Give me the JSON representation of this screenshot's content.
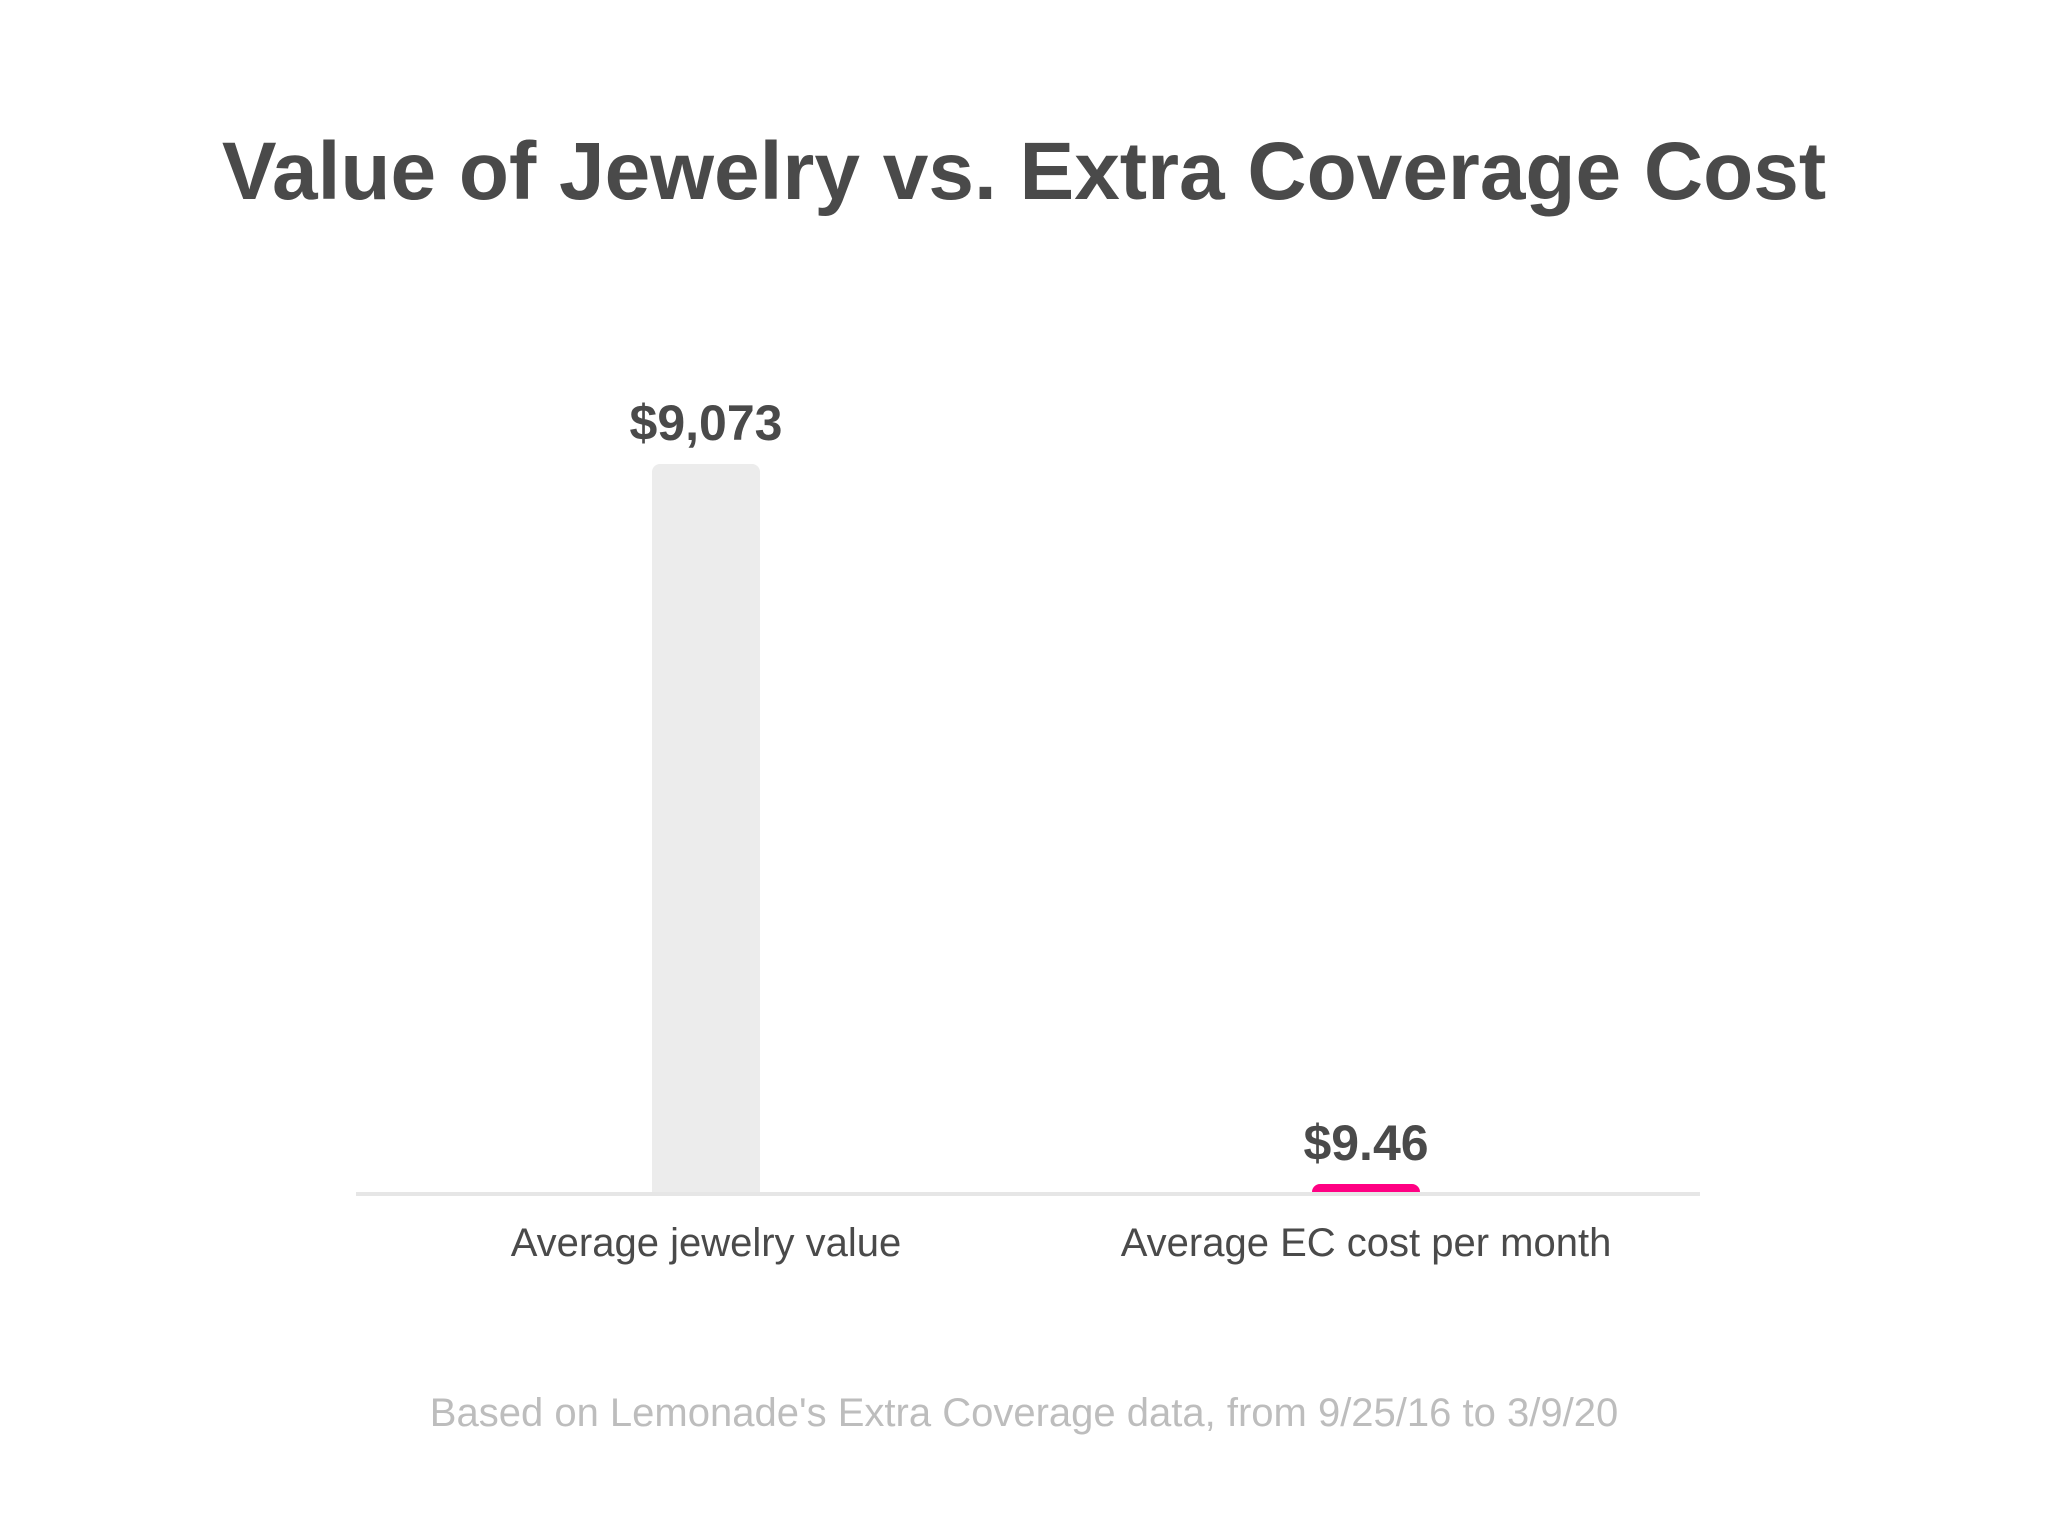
{
  "chart_data": {
    "type": "bar",
    "title": "Value of Jewelry vs. Extra Coverage Cost",
    "categories": [
      "Average jewelry value",
      "Average EC cost per month"
    ],
    "values": [
      9073,
      9.46
    ],
    "value_labels": [
      "$9,073",
      "$9.46"
    ],
    "bar_colors": [
      "#ececec",
      "#ff0083"
    ],
    "ylim": [
      0,
      9073
    ],
    "grid": false,
    "xlabel": "",
    "ylabel": "",
    "note": "Based on Lemonade's Extra Coverage data, from 9/25/16 to 3/9/20"
  },
  "colors": {
    "text_dark": "#4a4a4a",
    "text_muted": "#bdbdbd",
    "baseline": "#e6e6e6",
    "background": "#ffffff"
  }
}
